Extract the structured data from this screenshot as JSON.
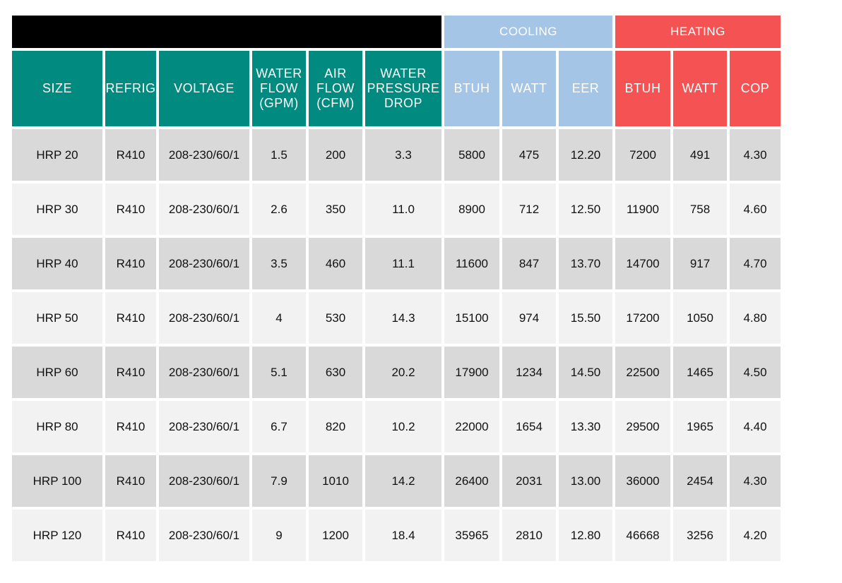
{
  "bands": {
    "cooling": "COOLING",
    "heating": "HEATING"
  },
  "columns": [
    {
      "key": "size",
      "label": "SIZE",
      "group": "spec"
    },
    {
      "key": "refrig",
      "label": "REFRIG",
      "group": "spec"
    },
    {
      "key": "voltage",
      "label": "VOLTAGE",
      "group": "spec"
    },
    {
      "key": "water_flow",
      "label": "WATER\nFLOW\n(GPM)",
      "group": "spec"
    },
    {
      "key": "air_flow",
      "label": "AIR\nFLOW\n(CFM)",
      "group": "spec"
    },
    {
      "key": "water_pressure_drop",
      "label": "WATER\nPRESSURE\nDROP",
      "group": "spec"
    },
    {
      "key": "cool_btuh",
      "label": "BTUH",
      "group": "cooling"
    },
    {
      "key": "cool_watt",
      "label": "WATT",
      "group": "cooling"
    },
    {
      "key": "eer",
      "label": "EER",
      "group": "cooling"
    },
    {
      "key": "heat_btuh",
      "label": "BTUH",
      "group": "heating"
    },
    {
      "key": "heat_watt",
      "label": "WATT",
      "group": "heating"
    },
    {
      "key": "cop",
      "label": "COP",
      "group": "heating"
    }
  ],
  "rows": [
    [
      "HRP 20",
      "R410",
      "208-230/60/1",
      "1.5",
      "200",
      "3.3",
      "5800",
      "475",
      "12.20",
      "7200",
      "491",
      "4.30"
    ],
    [
      "HRP 30",
      "R410",
      "208-230/60/1",
      "2.6",
      "350",
      "11.0",
      "8900",
      "712",
      "12.50",
      "11900",
      "758",
      "4.60"
    ],
    [
      "HRP 40",
      "R410",
      "208-230/60/1",
      "3.5",
      "460",
      "11.1",
      "11600",
      "847",
      "13.70",
      "14700",
      "917",
      "4.70"
    ],
    [
      "HRP 50",
      "R410",
      "208-230/60/1",
      "4",
      "530",
      "14.3",
      "15100",
      "974",
      "15.50",
      "17200",
      "1050",
      "4.80"
    ],
    [
      "HRP 60",
      "R410",
      "208-230/60/1",
      "5.1",
      "630",
      "20.2",
      "17900",
      "1234",
      "14.50",
      "22500",
      "1465",
      "4.50"
    ],
    [
      "HRP 80",
      "R410",
      "208-230/60/1",
      "6.7",
      "820",
      "10.2",
      "22000",
      "1654",
      "13.30",
      "29500",
      "1965",
      "4.40"
    ],
    [
      "HRP 100",
      "R410",
      "208-230/60/1",
      "7.9",
      "1010",
      "14.2",
      "26400",
      "2031",
      "13.00",
      "36000",
      "2454",
      "4.30"
    ],
    [
      "HRP 120",
      "R410",
      "208-230/60/1",
      "9",
      "1200",
      "18.4",
      "35965",
      "2810",
      "12.80",
      "46668",
      "3256",
      "4.20"
    ]
  ],
  "colors": {
    "spec_header": "#008a80",
    "cooling": "#a4c5e6",
    "heating": "#f55353",
    "row_dark": "#d9d9d9",
    "row_light": "#f2f2f2",
    "title_bar": "#000000"
  }
}
